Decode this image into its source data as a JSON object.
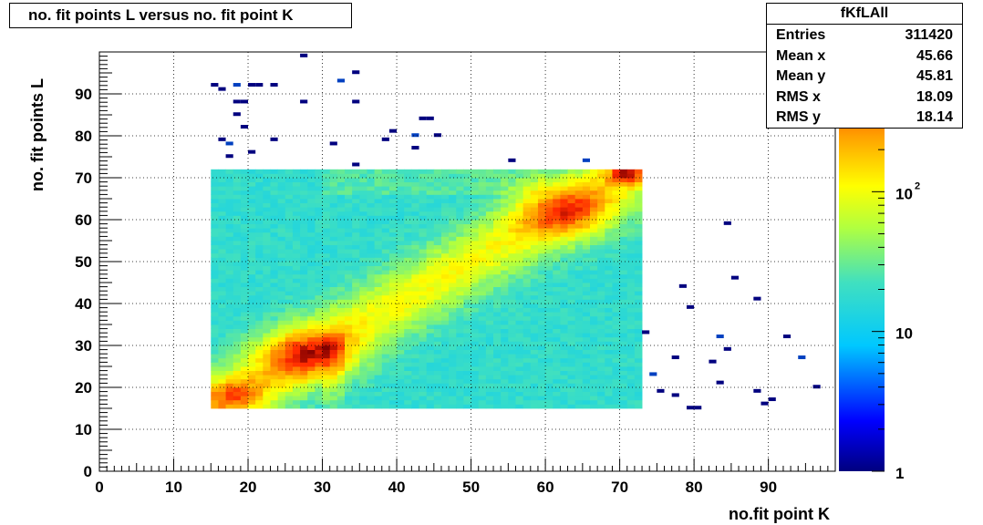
{
  "chart_data": {
    "type": "heatmap",
    "title": "no. fit points L versus no. fit point K",
    "xlabel": "no.fit point K",
    "ylabel": "no. fit points  L",
    "xlim": [
      0,
      99
    ],
    "ylim": [
      0,
      100
    ],
    "x_major_ticks": [
      0,
      10,
      20,
      30,
      40,
      50,
      60,
      70,
      80,
      90
    ],
    "y_major_ticks": [
      0,
      10,
      20,
      30,
      40,
      50,
      60,
      70,
      80,
      90
    ],
    "grid": true,
    "colorbar": {
      "scale": "log",
      "min": 1,
      "max": 1000,
      "tick_labels": [
        "1",
        "10",
        "10^2"
      ],
      "ticks": [
        1,
        10,
        100
      ]
    },
    "dense_region": {
      "x": [
        15,
        72
      ],
      "y": [
        15,
        72
      ]
    },
    "hotspots": [
      {
        "x": 28,
        "y": 28,
        "level": "max"
      },
      {
        "x": 63,
        "y": 62,
        "level": "high"
      },
      {
        "x": 71,
        "y": 71,
        "level": "max"
      }
    ],
    "sparse_points": [
      [
        15,
        92
      ],
      [
        16,
        91
      ],
      [
        18,
        92
      ],
      [
        19,
        88
      ],
      [
        20,
        92
      ],
      [
        21,
        92
      ],
      [
        23,
        92
      ],
      [
        27,
        99
      ],
      [
        34,
        95
      ],
      [
        32,
        93
      ],
      [
        18,
        88
      ],
      [
        27,
        88
      ],
      [
        34,
        88
      ],
      [
        18,
        85
      ],
      [
        19,
        82
      ],
      [
        16,
        79
      ],
      [
        17,
        78
      ],
      [
        20,
        76
      ],
      [
        17,
        75
      ],
      [
        23,
        79
      ],
      [
        31,
        78
      ],
      [
        38,
        79
      ],
      [
        39,
        81
      ],
      [
        42,
        80
      ],
      [
        43,
        84
      ],
      [
        44,
        84
      ],
      [
        45,
        80
      ],
      [
        42,
        77
      ],
      [
        34,
        73
      ],
      [
        55,
        74
      ],
      [
        65,
        74
      ],
      [
        84,
        59
      ],
      [
        85,
        46
      ],
      [
        88,
        41
      ],
      [
        78,
        44
      ],
      [
        79,
        39
      ],
      [
        73,
        33
      ],
      [
        74,
        23
      ],
      [
        75,
        19
      ],
      [
        77,
        18
      ],
      [
        77,
        27
      ],
      [
        79,
        15
      ],
      [
        80,
        15
      ],
      [
        82,
        26
      ],
      [
        83,
        32
      ],
      [
        84,
        29
      ],
      [
        83,
        21
      ],
      [
        88,
        19
      ],
      [
        89,
        16
      ],
      [
        90,
        17
      ],
      [
        92,
        32
      ],
      [
        94,
        27
      ],
      [
        96,
        20
      ]
    ]
  },
  "stats_box": {
    "name": "fKfLAll",
    "rows": [
      {
        "label": "Entries",
        "value": "311420"
      },
      {
        "label": "Mean x",
        "value": "45.66"
      },
      {
        "label": "Mean y",
        "value": "45.81"
      },
      {
        "label": "RMS x",
        "value": "18.09"
      },
      {
        "label": "RMS y",
        "value": "18.14"
      }
    ]
  }
}
